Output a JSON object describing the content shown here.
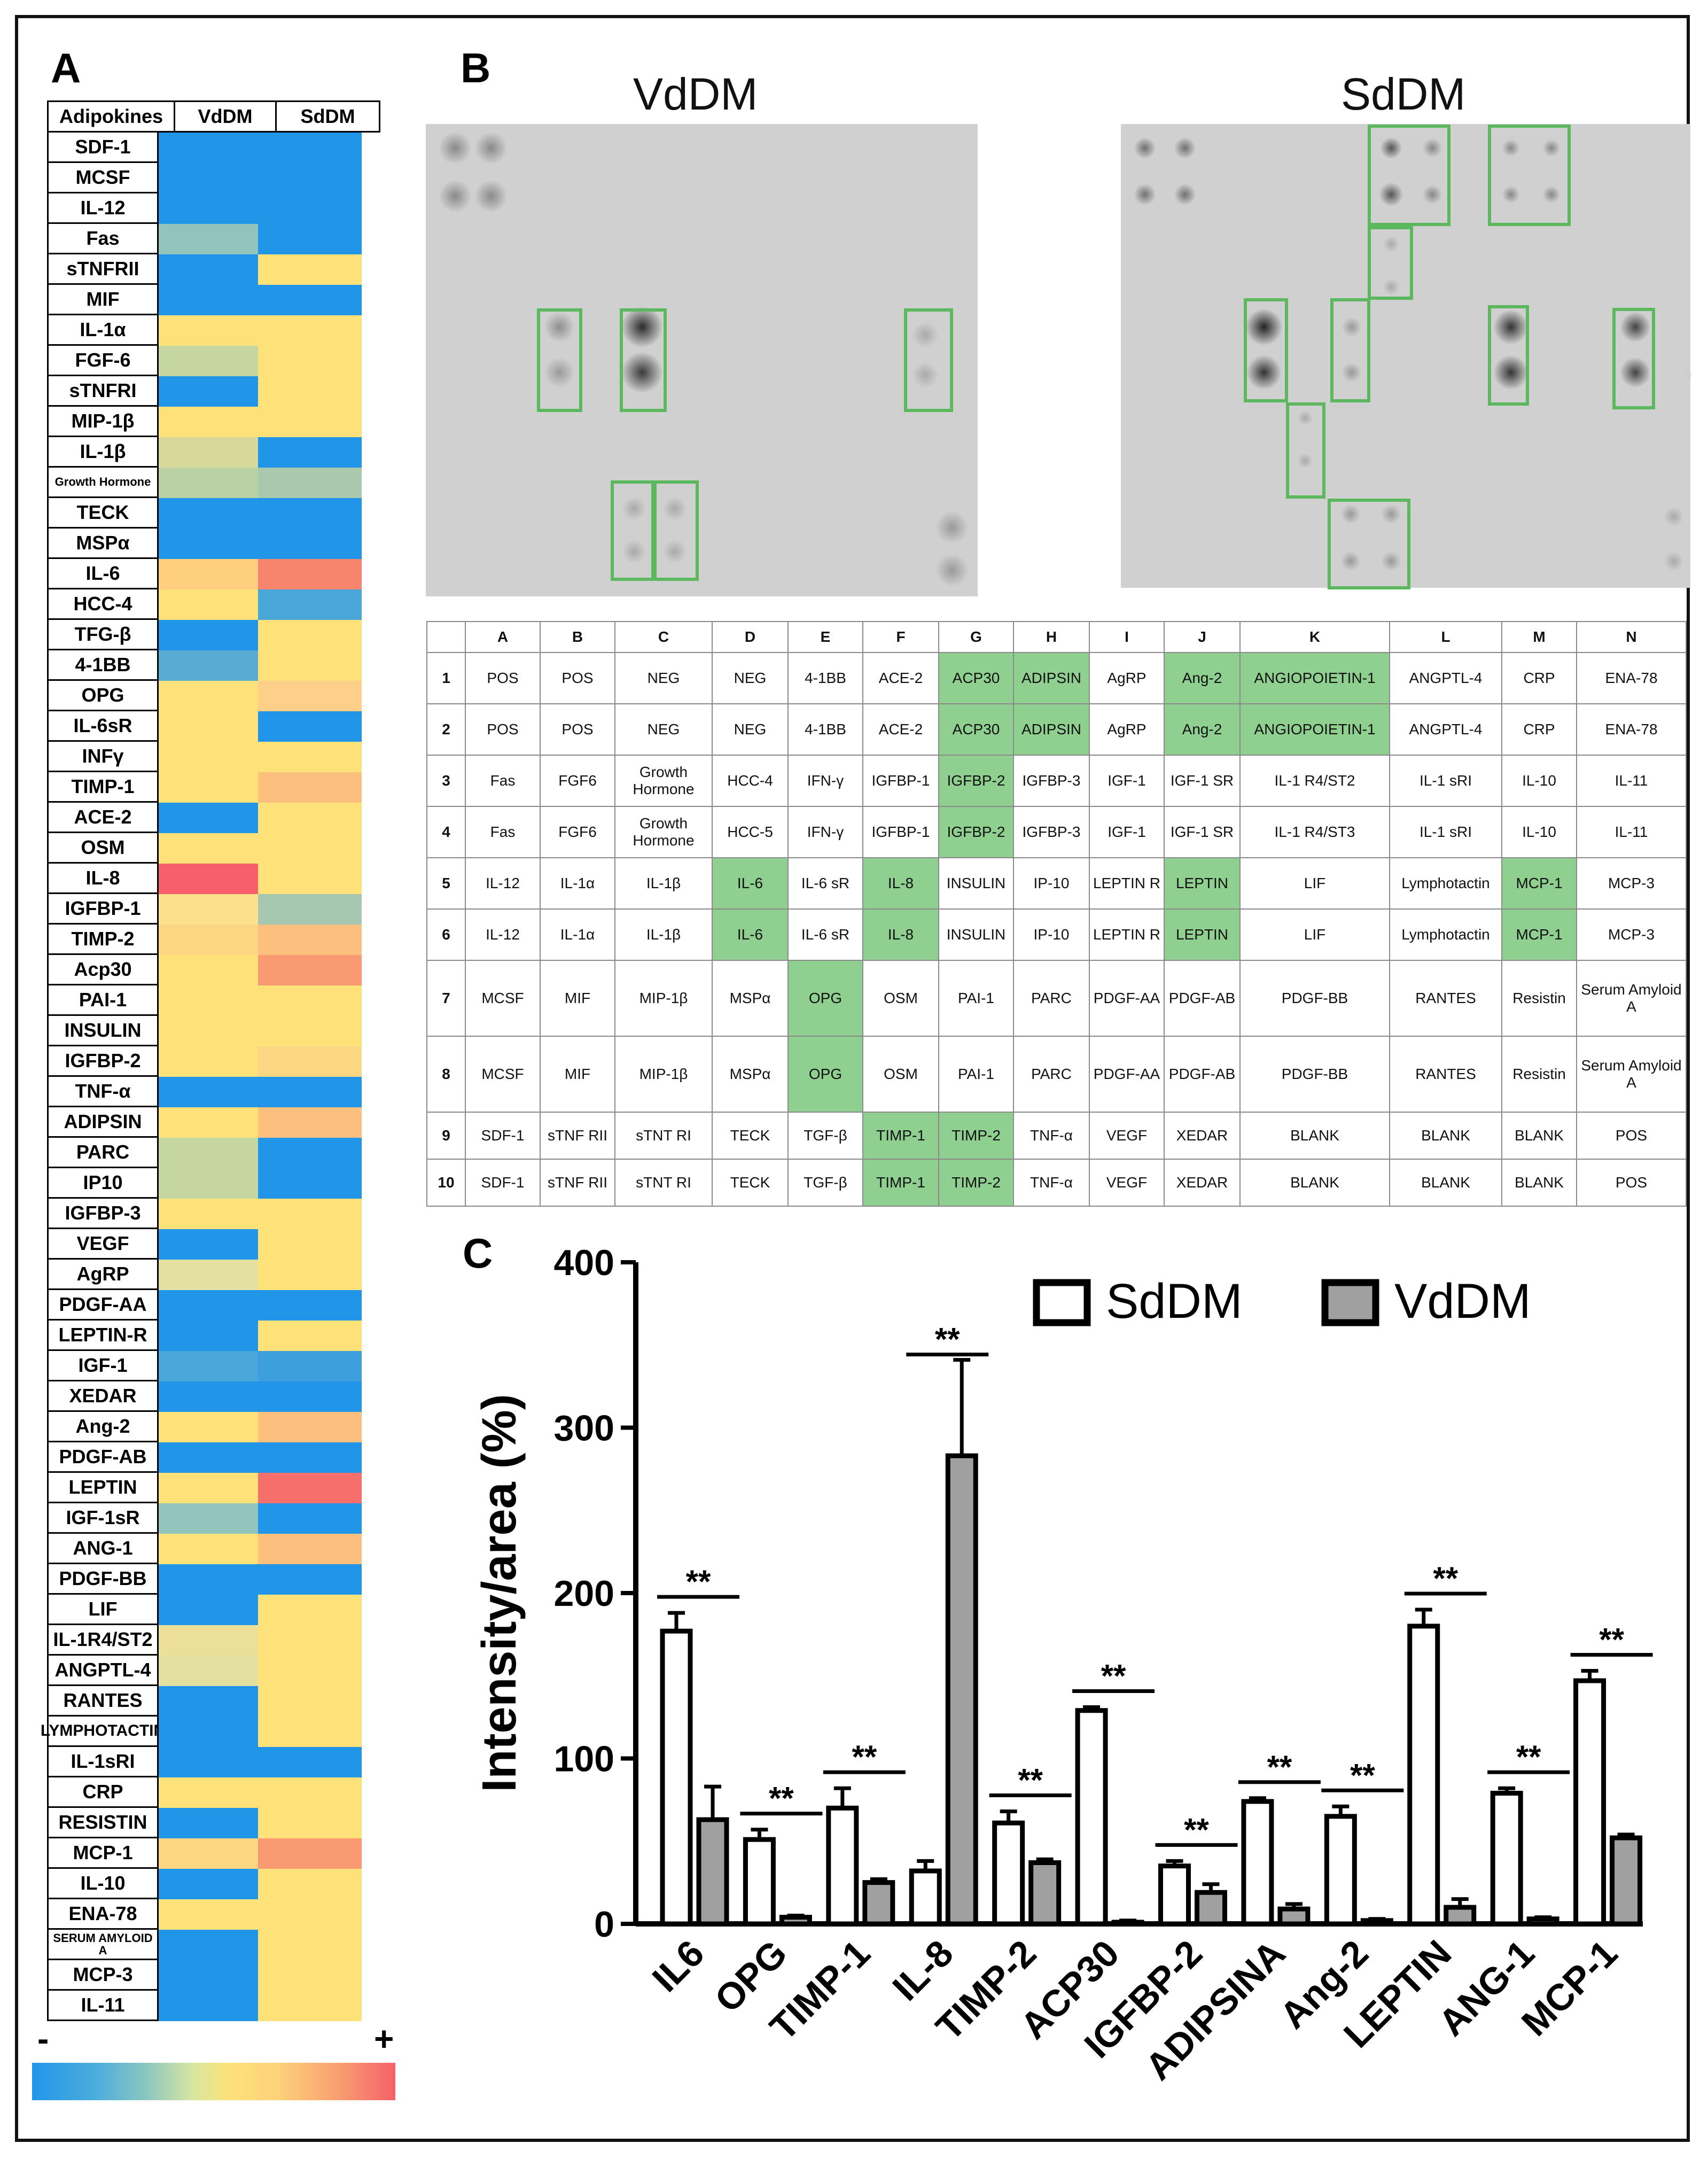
{
  "panels": {
    "a": "A",
    "b": "B",
    "c": "C"
  },
  "heatmap": {
    "headers": [
      "Adipokines",
      "VdDM",
      "SdDM"
    ],
    "scale_minus": "-",
    "scale_plus": "+",
    "rows": [
      {
        "label": "SDF-1",
        "vd": "#2196e8",
        "sd": "#2196e8"
      },
      {
        "label": "MCSF",
        "vd": "#2196e8",
        "sd": "#2196e8"
      },
      {
        "label": "IL-12",
        "vd": "#2196e8",
        "sd": "#2196e8"
      },
      {
        "label": "Fas",
        "vd": "#93c3bd",
        "sd": "#2196e8"
      },
      {
        "label": "sTNFRII",
        "vd": "#2196e8",
        "sd": "#fde27a"
      },
      {
        "label": "MIF",
        "vd": "#2196e8",
        "sd": "#2196e8"
      },
      {
        "label": "IL-1α",
        "vd": "#fde27a",
        "sd": "#fde27a"
      },
      {
        "label": "FGF-6",
        "vd": "#c5d7a0",
        "sd": "#fde27a"
      },
      {
        "label": "sTNFRI",
        "vd": "#2196e8",
        "sd": "#fde27a"
      },
      {
        "label": "MIP-1β",
        "vd": "#fde27a",
        "sd": "#fde27a"
      },
      {
        "label": "IL-1β",
        "vd": "#d6d99a",
        "sd": "#2196e8"
      },
      {
        "label": "Growth Hormone",
        "vd": "#b9d1a5",
        "sd": "#a9c8ae"
      },
      {
        "label": "TECK",
        "vd": "#2196e8",
        "sd": "#2196e8"
      },
      {
        "label": "MSPα",
        "vd": "#2196e8",
        "sd": "#2196e8"
      },
      {
        "label": "IL-6",
        "vd": "#fdcf7e",
        "sd": "#f7846c"
      },
      {
        "label": "HCC-4",
        "vd": "#fde27a",
        "sd": "#4aa8d8"
      },
      {
        "label": "TFG-β",
        "vd": "#2196e8",
        "sd": "#fde27a"
      },
      {
        "label": "4-1BB",
        "vd": "#5aabd4",
        "sd": "#fde27a"
      },
      {
        "label": "OPG",
        "vd": "#fde27a",
        "sd": "#fdcf88"
      },
      {
        "label": "IL-6sR",
        "vd": "#fde27a",
        "sd": "#2196e8"
      },
      {
        "label": "INFγ",
        "vd": "#fde27a",
        "sd": "#fde27a"
      },
      {
        "label": "TIMP-1",
        "vd": "#fde27a",
        "sd": "#fcc07e"
      },
      {
        "label": "ACE-2",
        "vd": "#2196e8",
        "sd": "#fde27a"
      },
      {
        "label": "OSM",
        "vd": "#fde27a",
        "sd": "#fde27a"
      },
      {
        "label": "IL-8",
        "vd": "#f5606a",
        "sd": "#fde27a"
      },
      {
        "label": "IGFBP-1",
        "vd": "#fde08c",
        "sd": "#a6c8b0"
      },
      {
        "label": "TIMP-2",
        "vd": "#fdd684",
        "sd": "#fcc07e"
      },
      {
        "label": "Acp30",
        "vd": "#fde27a",
        "sd": "#f99a72"
      },
      {
        "label": "PAI-1",
        "vd": "#fde27a",
        "sd": "#fde27a"
      },
      {
        "label": "INSULIN",
        "vd": "#fde27a",
        "sd": "#fde27a"
      },
      {
        "label": "IGFBP-2",
        "vd": "#fde27a",
        "sd": "#fdd684"
      },
      {
        "label": "TNF-α",
        "vd": "#2196e8",
        "sd": "#2196e8"
      },
      {
        "label": "ADIPSIN",
        "vd": "#fde27a",
        "sd": "#fcc07e"
      },
      {
        "label": "PARC",
        "vd": "#c5d7a0",
        "sd": "#2196e8"
      },
      {
        "label": "IP10",
        "vd": "#c5d7a0",
        "sd": "#2196e8"
      },
      {
        "label": "IGFBP-3",
        "vd": "#fde27a",
        "sd": "#fde27a"
      },
      {
        "label": "VEGF",
        "vd": "#2196e8",
        "sd": "#fde27a"
      },
      {
        "label": "AgRP",
        "vd": "#e3e0a0",
        "sd": "#fde27a"
      },
      {
        "label": "PDGF-AA",
        "vd": "#2196e8",
        "sd": "#2196e8"
      },
      {
        "label": "LEPTIN-R",
        "vd": "#2196e8",
        "sd": "#fde27a"
      },
      {
        "label": "IGF-1",
        "vd": "#4aa8d8",
        "sd": "#3d9fdc"
      },
      {
        "label": "XEDAR",
        "vd": "#2196e8",
        "sd": "#2196e8"
      },
      {
        "label": "Ang-2",
        "vd": "#fde27a",
        "sd": "#fcc07e"
      },
      {
        "label": "PDGF-AB",
        "vd": "#2196e8",
        "sd": "#2196e8"
      },
      {
        "label": "LEPTIN",
        "vd": "#fde27a",
        "sd": "#f5706a"
      },
      {
        "label": "IGF-1sR",
        "vd": "#93c3bd",
        "sd": "#2196e8"
      },
      {
        "label": "ANG-1",
        "vd": "#fde27a",
        "sd": "#fcc07e"
      },
      {
        "label": "PDGF-BB",
        "vd": "#2196e8",
        "sd": "#2196e8"
      },
      {
        "label": "LIF",
        "vd": "#2196e8",
        "sd": "#fde27a"
      },
      {
        "label": "IL-1R4/ST2",
        "vd": "#ecdf98",
        "sd": "#fde27a"
      },
      {
        "label": "ANGPTL-4",
        "vd": "#e3e0a0",
        "sd": "#fde27a"
      },
      {
        "label": "RANTES",
        "vd": "#2196e8",
        "sd": "#fde27a"
      },
      {
        "label": "LYMPHOTACTIN",
        "vd": "#2196e8",
        "sd": "#fde27a"
      },
      {
        "label": "IL-1sRI",
        "vd": "#2196e8",
        "sd": "#2196e8"
      },
      {
        "label": "CRP",
        "vd": "#fde27a",
        "sd": "#fde27a"
      },
      {
        "label": "RESISTIN",
        "vd": "#2196e8",
        "sd": "#fde27a"
      },
      {
        "label": "MCP-1",
        "vd": "#fdd684",
        "sd": "#f99a72"
      },
      {
        "label": "IL-10",
        "vd": "#2196e8",
        "sd": "#fde27a"
      },
      {
        "label": "ENA-78",
        "vd": "#fde27a",
        "sd": "#fde27a"
      },
      {
        "label": "SERUM AMYLOID A",
        "vd": "#2196e8",
        "sd": "#fde27a"
      },
      {
        "label": "MCP-3",
        "vd": "#2196e8",
        "sd": "#fde27a"
      },
      {
        "label": "IL-11",
        "vd": "#2196e8",
        "sd": "#fde27a"
      }
    ]
  },
  "blots": {
    "left_title": "VdDM",
    "right_title": "SdDM"
  },
  "array_table": {
    "columns": [
      "",
      "A",
      "B",
      "C",
      "D",
      "E",
      "F",
      "G",
      "H",
      "I",
      "J",
      "K",
      "L",
      "M",
      "N"
    ],
    "rows": [
      [
        "1",
        "POS",
        "POS",
        "NEG",
        "NEG",
        "4-1BB",
        "ACE-2",
        "ACP30",
        "ADIPSIN",
        "AgRP",
        "Ang-2",
        "ANGIOPOIETIN-1",
        "ANGPTL-4",
        "CRP",
        "ENA-78"
      ],
      [
        "2",
        "POS",
        "POS",
        "NEG",
        "NEG",
        "4-1BB",
        "ACE-2",
        "ACP30",
        "ADIPSIN",
        "AgRP",
        "Ang-2",
        "ANGIOPOIETIN-1",
        "ANGPTL-4",
        "CRP",
        "ENA-78"
      ],
      [
        "3",
        "Fas",
        "FGF6",
        "Growth Hormone",
        "HCC-4",
        "IFN-γ",
        "IGFBP-1",
        "IGFBP-2",
        "IGFBP-3",
        "IGF-1",
        "IGF-1 SR",
        "IL-1 R4/ST2",
        "IL-1 sRI",
        "IL-10",
        "IL-11"
      ],
      [
        "4",
        "Fas",
        "FGF6",
        "Growth Hormone",
        "HCC-5",
        "IFN-γ",
        "IGFBP-1",
        "IGFBP-2",
        "IGFBP-3",
        "IGF-1",
        "IGF-1 SR",
        "IL-1 R4/ST3",
        "IL-1 sRI",
        "IL-10",
        "IL-11"
      ],
      [
        "5",
        "IL-12",
        "IL-1α",
        "IL-1β",
        "IL-6",
        "IL-6 sR",
        "IL-8",
        "INSULIN",
        "IP-10",
        "LEPTIN R",
        "LEPTIN",
        "LIF",
        "Lymphotactin",
        "MCP-1",
        "MCP-3"
      ],
      [
        "6",
        "IL-12",
        "IL-1α",
        "IL-1β",
        "IL-6",
        "IL-6 sR",
        "IL-8",
        "INSULIN",
        "IP-10",
        "LEPTIN R",
        "LEPTIN",
        "LIF",
        "Lymphotactin",
        "MCP-1",
        "MCP-3"
      ],
      [
        "7",
        "MCSF",
        "MIF",
        "MIP-1β",
        "MSPα",
        "OPG",
        "OSM",
        "PAI-1",
        "PARC",
        "PDGF-AA",
        "PDGF-AB",
        "PDGF-BB",
        "RANTES",
        "Resistin",
        "Serum Amyloid A"
      ],
      [
        "8",
        "MCSF",
        "MIF",
        "MIP-1β",
        "MSPα",
        "OPG",
        "OSM",
        "PAI-1",
        "PARC",
        "PDGF-AA",
        "PDGF-AB",
        "PDGF-BB",
        "RANTES",
        "Resistin",
        "Serum Amyloid A"
      ],
      [
        "9",
        "SDF-1",
        "sTNF RII",
        "sTNT RI",
        "TECK",
        "TGF-β",
        "TIMP-1",
        "TIMP-2",
        "TNF-α",
        "VEGF",
        "XEDAR",
        "BLANK",
        "BLANK",
        "BLANK",
        "POS"
      ],
      [
        "10",
        "SDF-1",
        "sTNF RII",
        "sTNT RI",
        "TECK",
        "TGF-β",
        "TIMP-1",
        "TIMP-2",
        "TNF-α",
        "VEGF",
        "XEDAR",
        "BLANK",
        "BLANK",
        "BLANK",
        "POS"
      ]
    ],
    "highlight_color": "#8fcf8f",
    "highlighted": [
      "ACP30",
      "ADIPSIN",
      "Ang-2",
      "ANGIOPOIETIN-1",
      "IGFBP-2",
      "IL-6",
      "IL-8",
      "LEPTIN",
      "MCP-1",
      "OPG",
      "TIMP-1",
      "TIMP-2"
    ]
  },
  "chart_data": {
    "type": "bar",
    "ylabel": "Intensity/area (%)",
    "ylim": [
      0,
      400
    ],
    "yticks": [
      0,
      100,
      200,
      300,
      400
    ],
    "categories": [
      "IL6",
      "OPG",
      "TIMP-1",
      "IL-8",
      "TIMP-2",
      "ACP30",
      "IGFBP-2",
      "ADIPSINA",
      "Ang-2",
      "LEPTIN",
      "ANG-1",
      "MCP-1"
    ],
    "series": [
      {
        "name": "SdDM",
        "color": "#ffffff",
        "values": [
          177,
          51,
          70,
          32,
          61,
          129,
          35,
          74,
          65,
          180,
          79,
          147
        ],
        "errors": [
          11,
          6,
          12,
          6,
          7,
          2,
          3,
          2,
          6,
          10,
          3,
          6
        ]
      },
      {
        "name": "VdDM",
        "color": "#a0a0a0",
        "values": [
          63,
          4,
          25,
          283,
          37,
          1,
          19,
          9,
          2,
          10,
          3,
          52
        ],
        "errors": [
          20,
          1,
          2,
          58,
          2,
          1,
          5,
          3,
          1,
          5,
          1,
          2
        ]
      }
    ],
    "significance": [
      "**",
      "**",
      "**",
      "**",
      "**",
      "**",
      "**",
      "**",
      "**",
      "**",
      "**",
      "**"
    ],
    "legend": "top-right"
  }
}
